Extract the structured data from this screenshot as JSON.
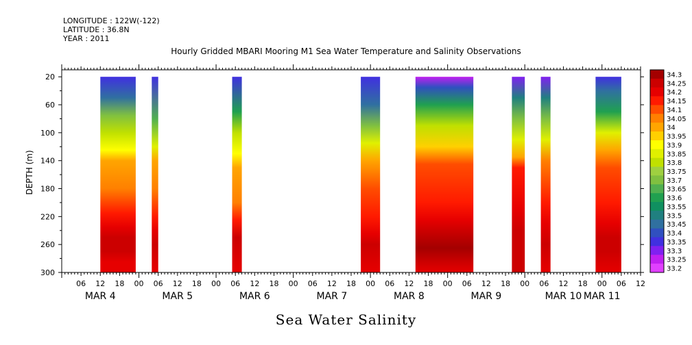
{
  "header": {
    "longitude": "LONGITUDE : 122W(-122)",
    "latitude": "LATITUDE : 36.8N",
    "year": "YEAR : 2011"
  },
  "footer": "Sea Water Salinity",
  "colors": {
    "missing": "#ffffff",
    "frame": "#000000"
  },
  "chart_data": {
    "type": "heatmap",
    "title": "Hourly Gridded MBARI Mooring M1 Sea Water Temperature and Salinity Observations",
    "ylabel": "DEPTH (m)",
    "xlabel": "",
    "ylim": [
      300,
      10
    ],
    "y_ticks": [
      20,
      60,
      100,
      140,
      180,
      220,
      260,
      300
    ],
    "x_range_hours": [
      0,
      180
    ],
    "hour_tick_labels": [
      "06",
      "12",
      "18",
      "00",
      "06",
      "12",
      "18",
      "00",
      "06",
      "12",
      "18",
      "00",
      "06",
      "12",
      "18",
      "00",
      "06",
      "12",
      "18",
      "00",
      "06",
      "12",
      "18",
      "00",
      "06",
      "12",
      "18",
      "00",
      "06",
      "12",
      "18",
      "00"
    ],
    "day_labels": [
      "MAR  4",
      "MAR  5",
      "MAR  6",
      "MAR  7",
      "MAR  8",
      "MAR  9",
      "MAR 10",
      "MAR 11"
    ],
    "colorbar": {
      "levels": [
        "34.3",
        "34.25",
        "34.2",
        "34.15",
        "34.1",
        "34.05",
        "34",
        "33.95",
        "33.9",
        "33.85",
        "33.8",
        "33.75",
        "33.7",
        "33.65",
        "33.6",
        "33.55",
        "33.5",
        "33.45",
        "33.4",
        "33.35",
        "33.3",
        "33.25",
        "33.2"
      ],
      "colors": [
        "#a40000",
        "#cc0000",
        "#e60000",
        "#ff1a00",
        "#ff4d00",
        "#ff8000",
        "#ffa500",
        "#ffd000",
        "#ffff00",
        "#e0f000",
        "#c0e000",
        "#9fd040",
        "#80c040",
        "#50b050",
        "#20a050",
        "#109060",
        "#208080",
        "#3070a0",
        "#3050c0",
        "#4030e0",
        "#8020f0",
        "#c020f0",
        "#e040ff"
      ]
    },
    "data_segments": [
      {
        "start": "MAR 4 12:00",
        "end": "MAR 4 23:00",
        "x0": 12,
        "x1": 23,
        "top": 33.35,
        "profile": [
          [
            20,
            33.35
          ],
          [
            50,
            33.45
          ],
          [
            75,
            33.7
          ],
          [
            100,
            33.8
          ],
          [
            125,
            33.9
          ],
          [
            140,
            34.0
          ],
          [
            180,
            34.05
          ],
          [
            215,
            34.15
          ],
          [
            235,
            34.2
          ],
          [
            250,
            34.25
          ],
          [
            270,
            34.25
          ],
          [
            285,
            34.2
          ],
          [
            300,
            34.2
          ]
        ]
      },
      {
        "start": "MAR 5 04:00",
        "end": "MAR 5 06:00",
        "x0": 28,
        "x1": 30,
        "top": 33.35,
        "profile": [
          [
            20,
            33.35
          ],
          [
            80,
            33.65
          ],
          [
            120,
            33.85
          ],
          [
            140,
            34.0
          ],
          [
            180,
            34.05
          ],
          [
            220,
            34.15
          ],
          [
            240,
            34.2
          ],
          [
            260,
            34.25
          ],
          [
            300,
            34.2
          ]
        ]
      },
      {
        "start": "MAR 6 05:00",
        "end": "MAR 6 08:00",
        "x0": 53,
        "x1": 56,
        "top": 33.35,
        "profile": [
          [
            20,
            33.35
          ],
          [
            70,
            33.6
          ],
          [
            100,
            33.8
          ],
          [
            130,
            33.9
          ],
          [
            150,
            34.0
          ],
          [
            200,
            34.05
          ],
          [
            225,
            34.15
          ],
          [
            250,
            34.25
          ],
          [
            300,
            34.2
          ]
        ]
      },
      {
        "start": "MAR 7 21:00",
        "end": "MAR 8 03:00",
        "x0": 93,
        "x1": 99,
        "top": 33.35,
        "profile": [
          [
            20,
            33.35
          ],
          [
            60,
            33.45
          ],
          [
            90,
            33.7
          ],
          [
            115,
            33.85
          ],
          [
            140,
            34.0
          ],
          [
            180,
            34.1
          ],
          [
            220,
            34.15
          ],
          [
            245,
            34.2
          ],
          [
            260,
            34.25
          ],
          [
            300,
            34.2
          ]
        ]
      },
      {
        "start": "MAR 8 14:00",
        "end": "MAR 9 08:00",
        "x0": 110,
        "x1": 128,
        "top": 33.25,
        "profile": [
          [
            20,
            33.25
          ],
          [
            35,
            33.4
          ],
          [
            60,
            33.6
          ],
          [
            90,
            33.8
          ],
          [
            120,
            33.95
          ],
          [
            145,
            34.1
          ],
          [
            200,
            34.15
          ],
          [
            225,
            34.2
          ],
          [
            240,
            34.25
          ],
          [
            265,
            34.3
          ],
          [
            285,
            34.25
          ],
          [
            300,
            34.2
          ]
        ]
      },
      {
        "start": "MAR 9 20:00",
        "end": "MAR 10 00:00",
        "x0": 140,
        "x1": 144,
        "top": 33.3,
        "profile": [
          [
            20,
            33.3
          ],
          [
            50,
            33.5
          ],
          [
            80,
            33.7
          ],
          [
            110,
            33.85
          ],
          [
            135,
            34.0
          ],
          [
            150,
            34.15
          ],
          [
            210,
            34.2
          ],
          [
            240,
            34.25
          ],
          [
            300,
            34.25
          ]
        ]
      },
      {
        "start": "MAR 10 05:00",
        "end": "MAR 10 08:00",
        "x0": 149,
        "x1": 152,
        "top": 33.3,
        "profile": [
          [
            20,
            33.3
          ],
          [
            50,
            33.5
          ],
          [
            80,
            33.7
          ],
          [
            110,
            33.85
          ],
          [
            140,
            34.05
          ],
          [
            200,
            34.15
          ],
          [
            230,
            34.2
          ],
          [
            260,
            34.25
          ],
          [
            300,
            34.2
          ]
        ]
      },
      {
        "start": "MAR 10 22:00",
        "end": "MAR 11 06:00",
        "x0": 166,
        "x1": 174,
        "top": 33.35,
        "profile": [
          [
            20,
            33.35
          ],
          [
            40,
            33.45
          ],
          [
            70,
            33.6
          ],
          [
            100,
            33.85
          ],
          [
            125,
            34.0
          ],
          [
            150,
            34.1
          ],
          [
            200,
            34.15
          ],
          [
            230,
            34.2
          ],
          [
            250,
            34.25
          ],
          [
            270,
            34.25
          ],
          [
            300,
            34.2
          ]
        ]
      }
    ]
  }
}
